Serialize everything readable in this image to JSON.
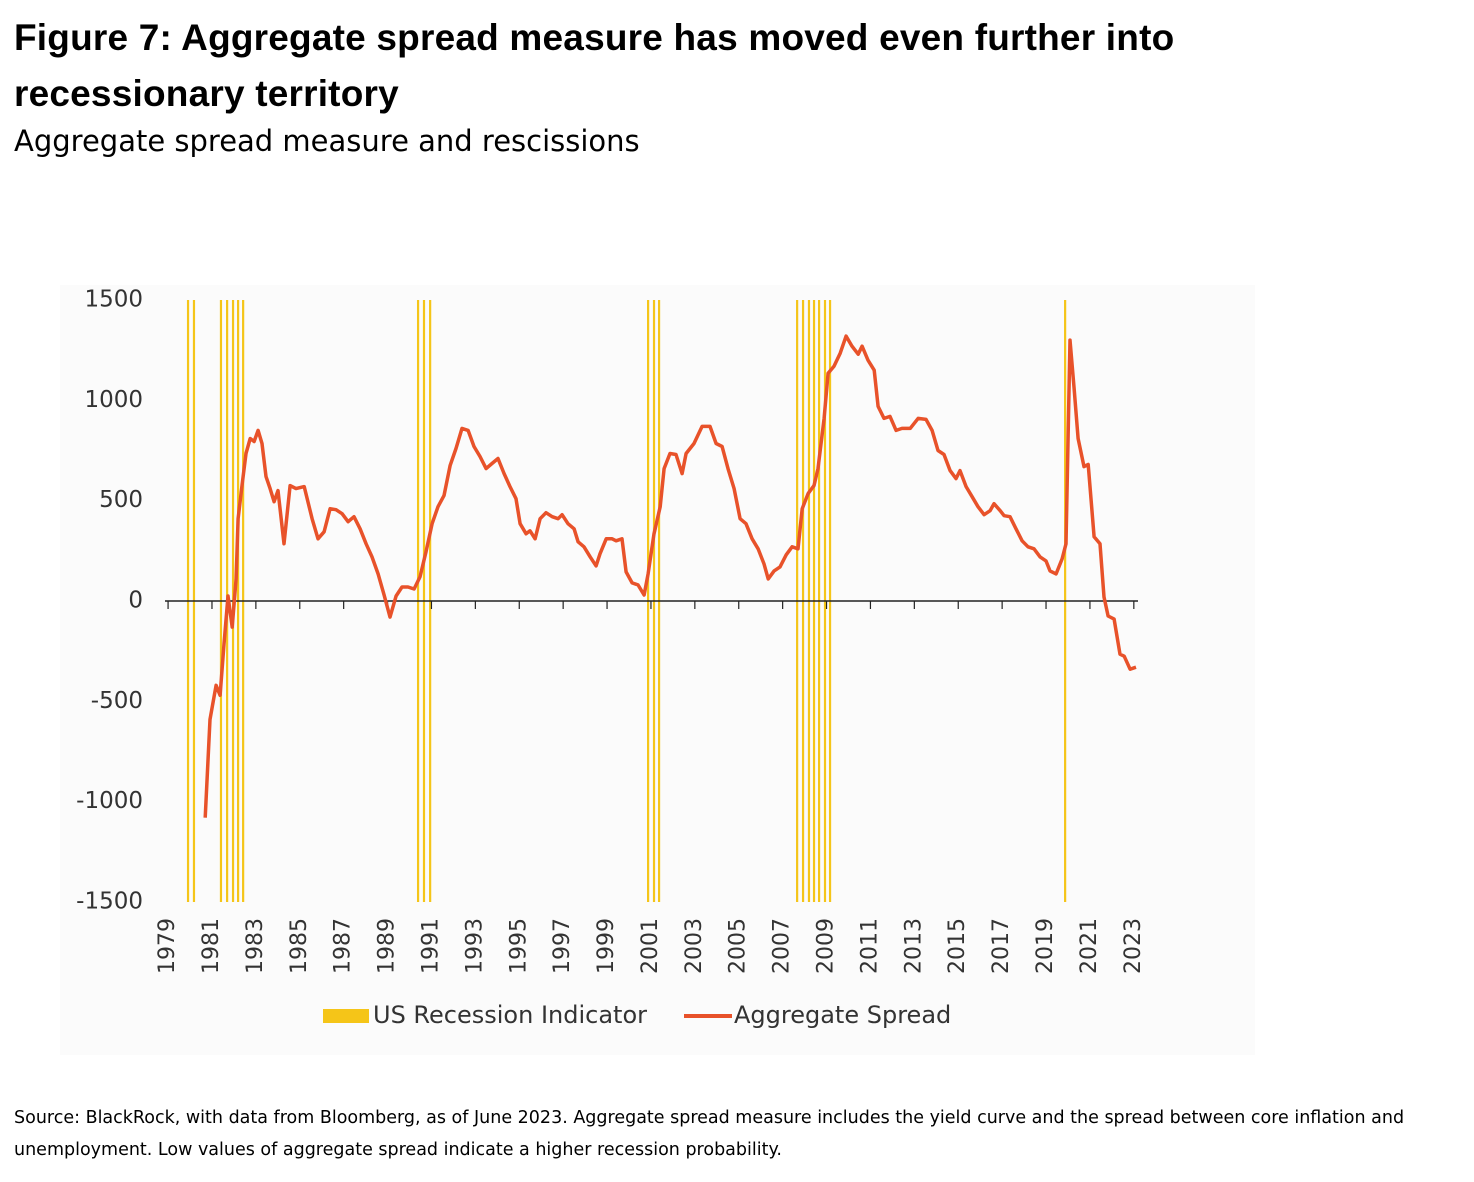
{
  "chart_data": {
    "type": "line",
    "title": "Figure 7: Aggregate spread measure has moved even further into recessionary territory",
    "subtitle": "Aggregate spread measure and rescissions",
    "source": "Source: BlackRock, with data from Bloomberg, as of June 2023. Aggregate spread measure includes the yield curve and the spread between core inflation and unemployment. Low values of aggregate spread indicate a higher recession probability.",
    "xlim": [
      1978.86,
      2023.19
    ],
    "xticks": [
      1979,
      1981,
      1983,
      1985,
      1987,
      1989,
      1991,
      1993,
      1995,
      1997,
      1999,
      2001,
      2003,
      2005,
      2007,
      2009,
      2011,
      2013,
      2015,
      2017,
      2019,
      2021,
      2023
    ],
    "ylim": [
      -1500,
      1500
    ],
    "yticks": [
      -1500,
      -1000,
      -500,
      0,
      500,
      1000,
      1500
    ],
    "y2lim": [
      0,
      1
    ],
    "series": [
      {
        "name": "US Recession Indicator",
        "color": "#f5c518",
        "axis": "y2",
        "x": [
          1979.91,
          1980.18,
          1981.41,
          1981.69,
          1981.96,
          1982.19,
          1982.42,
          1990.39,
          1990.66,
          1990.94,
          2000.87,
          2001.14,
          2001.37,
          2007.66,
          2007.93,
          2008.2,
          2008.43,
          2008.66,
          2008.93,
          2009.16,
          2019.87
        ],
        "values": [
          1,
          1,
          1,
          1,
          1,
          1,
          1,
          1,
          1,
          1,
          1,
          1,
          1,
          1,
          1,
          1,
          1,
          1,
          1,
          1,
          1
        ]
      },
      {
        "name": "Aggregate Spread",
        "color": "#e8522a",
        "x": [
          1980.69,
          1980.91,
          1981.19,
          1981.37,
          1981.55,
          1981.73,
          1981.92,
          1982.1,
          1982.19,
          1982.37,
          1982.55,
          1982.74,
          1982.92,
          1983.1,
          1983.28,
          1983.46,
          1983.65,
          1983.83,
          1984.01,
          1984.28,
          1984.56,
          1984.83,
          1985.2,
          1985.56,
          1985.83,
          1986.11,
          1986.38,
          1986.65,
          1986.93,
          1987.2,
          1987.47,
          1987.75,
          1988.02,
          1988.29,
          1988.57,
          1988.84,
          1989.11,
          1989.39,
          1989.66,
          1989.93,
          1990.21,
          1990.48,
          1990.75,
          1991.03,
          1991.3,
          1991.57,
          1991.85,
          1992.12,
          1992.39,
          1992.67,
          1992.94,
          1993.21,
          1993.49,
          1993.76,
          1994.03,
          1994.31,
          1994.58,
          1994.85,
          1995.04,
          1995.31,
          1995.49,
          1995.72,
          1995.95,
          1996.22,
          1996.5,
          1996.77,
          1996.95,
          1997.22,
          1997.5,
          1997.68,
          1997.95,
          1998.23,
          1998.5,
          1998.68,
          1998.96,
          1999.23,
          1999.41,
          1999.68,
          1999.87,
          2000.14,
          2000.41,
          2000.69,
          2000.87,
          2001.14,
          2001.42,
          2001.6,
          2001.87,
          2002.14,
          2002.42,
          2002.6,
          2002.96,
          2003.33,
          2003.69,
          2003.97,
          2004.24,
          2004.51,
          2004.79,
          2005.06,
          2005.33,
          2005.61,
          2005.88,
          2006.15,
          2006.34,
          2006.61,
          2006.88,
          2007.16,
          2007.43,
          2007.7,
          2007.89,
          2008.16,
          2008.43,
          2008.61,
          2008.89,
          2009.07,
          2009.34,
          2009.62,
          2009.89,
          2010.16,
          2010.44,
          2010.62,
          2010.89,
          2011.17,
          2011.35,
          2011.62,
          2011.89,
          2012.17,
          2012.44,
          2012.81,
          2013.17,
          2013.53,
          2013.81,
          2014.08,
          2014.35,
          2014.63,
          2014.9,
          2015.08,
          2015.36,
          2015.63,
          2015.9,
          2016.18,
          2016.45,
          2016.63,
          2016.91,
          2017.09,
          2017.36,
          2017.63,
          2017.91,
          2018.18,
          2018.45,
          2018.73,
          2019.0,
          2019.18,
          2019.46,
          2019.73,
          2019.91,
          2020.09,
          2020.28,
          2020.46,
          2020.73,
          2020.92,
          2021.19,
          2021.46,
          2021.64,
          2021.83,
          2022.1,
          2022.37,
          2022.56,
          2022.83,
          2023.1
        ],
        "values": [
          -1080,
          -590,
          -420,
          -470,
          -215,
          25,
          -130,
          110,
          410,
          575,
          735,
          810,
          795,
          850,
          785,
          620,
          560,
          495,
          550,
          285,
          575,
          560,
          570,
          410,
          310,
          345,
          460,
          455,
          435,
          395,
          420,
          360,
          285,
          220,
          135,
          30,
          -80,
          25,
          70,
          70,
          60,
          120,
          245,
          385,
          470,
          525,
          675,
          760,
          860,
          850,
          770,
          720,
          660,
          685,
          710,
          635,
          570,
          510,
          385,
          335,
          350,
          310,
          410,
          440,
          420,
          410,
          430,
          385,
          360,
          295,
          270,
          220,
          175,
          235,
          310,
          310,
          300,
          310,
          145,
          90,
          80,
          30,
          135,
          335,
          470,
          660,
          735,
          730,
          635,
          735,
          785,
          870,
          870,
          785,
          770,
          660,
          560,
          410,
          385,
          310,
          260,
          185,
          110,
          150,
          170,
          230,
          270,
          260,
          460,
          535,
          575,
          660,
          910,
          1135,
          1170,
          1235,
          1320,
          1270,
          1230,
          1270,
          1200,
          1150,
          970,
          910,
          920,
          850,
          860,
          860,
          910,
          905,
          850,
          750,
          730,
          650,
          610,
          650,
          570,
          520,
          470,
          430,
          450,
          485,
          450,
          425,
          420,
          360,
          300,
          270,
          260,
          220,
          200,
          150,
          135,
          210,
          285,
          1300,
          1060,
          810,
          670,
          680,
          320,
          285,
          20,
          -75,
          -90,
          -265,
          -275,
          -340,
          -330
        ]
      }
    ]
  }
}
